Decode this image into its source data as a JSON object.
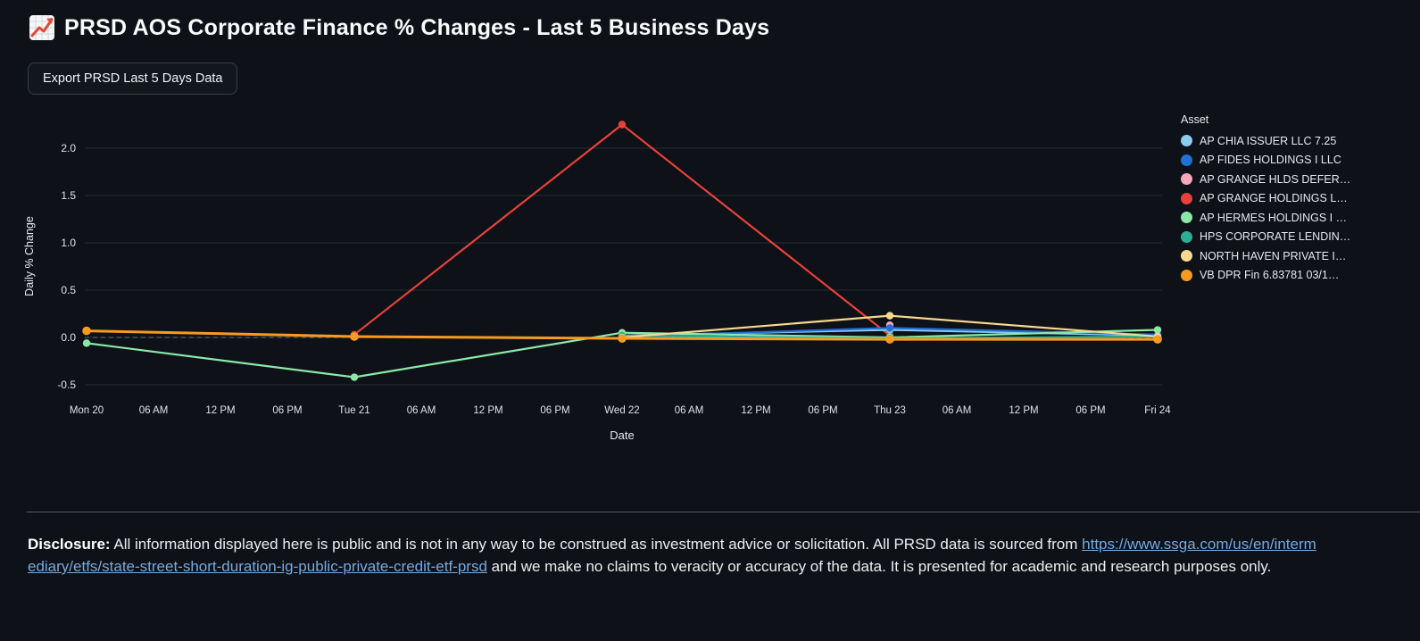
{
  "page": {
    "title": "PRSD AOS Corporate Finance % Changes - Last 5 Business Days"
  },
  "toolbar": {
    "export_button_label": "Export PRSD Last 5 Days Data"
  },
  "chart_data": {
    "type": "line",
    "xlabel": "Date",
    "ylabel": "Daily % Change",
    "legend_title": "Asset",
    "x_tick_labels": [
      "Mon 20",
      "06 AM",
      "12 PM",
      "06 PM",
      "Tue 21",
      "06 AM",
      "12 PM",
      "06 PM",
      "Wed 22",
      "06 AM",
      "12 PM",
      "06 PM",
      "Thu 23",
      "06 AM",
      "12 PM",
      "06 PM",
      "Fri 24"
    ],
    "x_days": [
      "Mon 20",
      "Tue 21",
      "Wed 22",
      "Thu 23",
      "Fri 24"
    ],
    "y_ticks": [
      2.0,
      1.5,
      1.0,
      0.5,
      0.0,
      -0.5
    ],
    "y_tick_labels": [
      "2.0",
      "1.5",
      "1.0",
      "0.5",
      "0.0",
      "-0.5"
    ],
    "ylim": [
      -0.62,
      2.35
    ],
    "grid": true,
    "zero_line_dashed": true,
    "legend_position": "right",
    "series": [
      {
        "name": "AP CHIA ISSUER LLC 7.25",
        "color": "#8CCBF0",
        "points": [
          [
            2,
            0.02
          ],
          [
            3,
            0.08
          ],
          [
            4,
            0.02
          ]
        ]
      },
      {
        "name": "AP FIDES HOLDINGS I LLC",
        "color": "#2070D6",
        "points": [
          [
            2,
            0.01
          ],
          [
            3,
            0.1
          ],
          [
            4,
            0.03
          ]
        ]
      },
      {
        "name": "AP GRANGE HLDS DEFER…",
        "color": "#F7A8B8",
        "points": [
          [
            3,
            0.13
          ]
        ]
      },
      {
        "name": "AP GRANGE HOLDINGS L…",
        "color": "#E8413A",
        "points": [
          [
            1,
            0.03
          ],
          [
            2,
            2.25
          ],
          [
            3,
            0.02
          ]
        ]
      },
      {
        "name": "AP HERMES HOLDINGS I …",
        "color": "#8BE9A8",
        "points": [
          [
            0,
            -0.06
          ],
          [
            1,
            -0.42
          ],
          [
            2,
            0.05
          ],
          [
            3,
            0.0
          ],
          [
            4,
            0.08
          ]
        ]
      },
      {
        "name": "HPS CORPORATE LENDIN…",
        "color": "#2EAD96",
        "points": [
          [
            2,
            0.02
          ],
          [
            3,
            -0.01
          ],
          [
            4,
            0.01
          ]
        ]
      },
      {
        "name": "NORTH HAVEN PRIVATE I…",
        "color": "#F6D98E",
        "points": [
          [
            2,
            0.0
          ],
          [
            3,
            0.23
          ],
          [
            4,
            0.01
          ]
        ]
      },
      {
        "name": "VB DPR Fin 6.83781 03/1…",
        "color": "#F79B20",
        "points": [
          [
            0,
            0.07
          ],
          [
            1,
            0.01
          ],
          [
            2,
            -0.01
          ],
          [
            3,
            -0.02
          ],
          [
            4,
            -0.02
          ]
        ]
      }
    ],
    "draw_order": [
      2,
      3,
      0,
      1,
      4,
      5,
      6,
      7
    ]
  },
  "disclosure": {
    "label": "Disclosure:",
    "text_before_link": " All information displayed here is public and is not in any way to be construed as investment advice or solicitation. All PRSD data is sourced from ",
    "link_text": "https://www.ssga.com/us/en/intermediary/etfs/state-street-short-duration-ig-public-private-credit-etf-prsd",
    "text_after_link": " and we make no claims to veracity or accuracy of the data. It is presented for academic and research purposes only."
  }
}
